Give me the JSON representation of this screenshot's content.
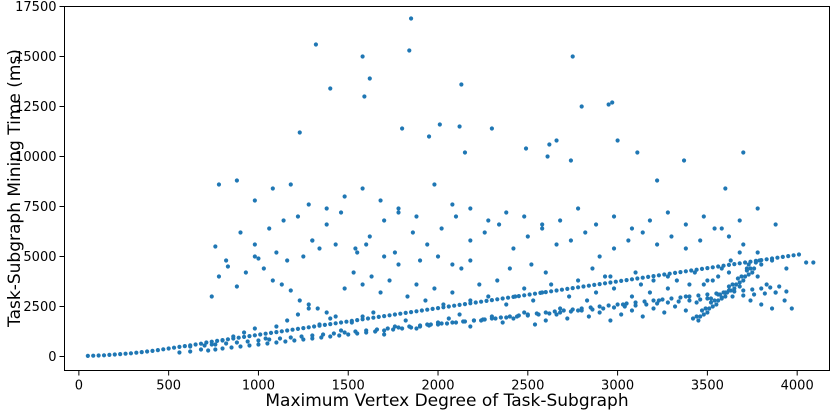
{
  "chart_data": {
    "type": "scatter",
    "title": "",
    "xlabel": "Maximum Vertex Degree of Task-Subgraph",
    "ylabel": "Task-Subgraph Mining Time (ms)",
    "xlim": [
      -80,
      4180
    ],
    "ylim": [
      -700,
      17500
    ],
    "xticks": [
      0,
      500,
      1000,
      1500,
      2000,
      2500,
      3000,
      3500,
      4000
    ],
    "xtick_labels": [
      "0",
      "500",
      "1000",
      "1500",
      "2000",
      "2500",
      "3000",
      "3500",
      "4000"
    ],
    "yticks": [
      0,
      2500,
      5000,
      7500,
      10000,
      12500,
      15000,
      17500
    ],
    "ytick_labels": [
      "0",
      "2500",
      "5000",
      "7500",
      "10000",
      "12500",
      "15000",
      "17500"
    ],
    "grid": false,
    "legend": "none",
    "point_color": "#1f77b4",
    "series": [
      {
        "x": [
          50,
          80,
          110,
          140,
          170,
          200,
          230,
          260,
          290,
          320,
          350,
          380,
          410,
          440,
          470,
          500,
          530,
          560,
          590,
          620,
          650,
          680,
          710,
          740,
          770,
          800,
          830,
          860,
          890,
          920,
          950,
          980,
          1010,
          1040,
          1070,
          1100,
          1130,
          1160,
          1190,
          1220,
          1250,
          1280,
          1310,
          1340,
          1370,
          1400,
          1430,
          1460,
          1490,
          1520,
          1550,
          1580,
          1610,
          1640,
          1670,
          1700,
          1730,
          1760,
          1790,
          1820,
          1850,
          1880,
          1910,
          1940,
          1970,
          2000,
          2030,
          2060,
          2090,
          2120,
          2150,
          2180,
          2210,
          2240,
          2270,
          2300,
          2330,
          2360,
          2390,
          2420,
          2450,
          2480,
          2510,
          2540,
          2570,
          2600,
          2630,
          2660,
          2690,
          2720,
          2750,
          2780,
          2810,
          2840,
          2870,
          2900,
          2930,
          2960,
          2990,
          3020,
          3050,
          3080,
          3110,
          3140,
          3170,
          3200,
          3230,
          3260,
          3290,
          3320,
          3350,
          3380,
          3410,
          3440,
          3470,
          3500,
          3530,
          3560,
          3590,
          3620,
          3650,
          3680,
          3710,
          3740,
          3770,
          3800,
          3830,
          3860,
          3890,
          3920,
          3950,
          3980,
          4010,
          4050,
          4090,
          720,
          760,
          800,
          850,
          900,
          950,
          1000,
          1050,
          1100,
          1150,
          1200,
          1250,
          1300,
          1350,
          1400,
          1450,
          1500,
          1550,
          1600,
          1650,
          1700,
          1750,
          1800,
          1850,
          1900,
          1950,
          2000,
          2050,
          2100,
          2150,
          2200,
          2250,
          2300,
          2350,
          2400,
          2450,
          2500,
          2550,
          2600,
          2650,
          2700,
          2750,
          2800,
          2850,
          2900,
          2950,
          3000,
          3050,
          3100,
          3150,
          3200,
          3250,
          3300,
          3350,
          3400,
          3450,
          3500,
          3550,
          3600,
          3650,
          3700,
          3750,
          3800,
          3850,
          3900,
          560,
          620,
          680,
          740,
          800,
          860,
          920,
          980,
          1040,
          1100,
          1160,
          1220,
          1280,
          1340,
          1400,
          1460,
          1520,
          1580,
          1640,
          1700,
          1760,
          1820,
          1880,
          1940,
          2000,
          2060,
          2120,
          2180,
          2240,
          2300,
          2360,
          2420,
          2480,
          2540,
          2600,
          2660,
          2720,
          2780,
          2840,
          2900,
          2960,
          3020,
          3080,
          3140,
          3200,
          3260,
          3320,
          3380,
          3440,
          3500,
          3560,
          3620,
          3680,
          3740,
          3800,
          3860,
          740,
          780,
          830,
          880,
          930,
          980,
          1030,
          1080,
          1130,
          1180,
          1230,
          1280,
          1330,
          1380,
          1430,
          1480,
          1530,
          1580,
          1630,
          1680,
          1730,
          1780,
          1830,
          1880,
          1930,
          1980,
          2030,
          2080,
          2130,
          2180,
          2230,
          2280,
          2330,
          2380,
          2430,
          2480,
          2530,
          2580,
          2630,
          2680,
          2730,
          2780,
          2830,
          2880,
          2930,
          2980,
          3030,
          3080,
          3130,
          3180,
          3230,
          3280,
          3330,
          3380,
          3430,
          3480,
          3530,
          3580,
          3630,
          3680,
          3730,
          3780,
          3830,
          3880,
          3930,
          3970,
          760,
          820,
          900,
          980,
          1060,
          1140,
          1220,
          1300,
          1380,
          1460,
          1540,
          1620,
          1700,
          1780,
          1860,
          1940,
          2020,
          2100,
          2180,
          2260,
          2340,
          2420,
          2500,
          2580,
          2660,
          2740,
          2820,
          2900,
          2980,
          3060,
          3140,
          3220,
          3300,
          3380,
          3460,
          3540,
          3620,
          3700,
          3780,
          3860,
          3940,
          780,
          880,
          980,
          1080,
          1180,
          1280,
          1380,
          1480,
          1580,
          1680,
          1780,
          1880,
          1980,
          2080,
          2180,
          2280,
          2380,
          2480,
          2580,
          2680,
          2780,
          2880,
          2980,
          3080,
          3180,
          3280,
          3380,
          3480,
          3580,
          3680,
          3780,
          3880,
          1320,
          1850,
          1580,
          1840,
          2130,
          2750,
          2970,
          1400,
          1620,
          1590,
          2800,
          2950,
          3000,
          1230,
          1800,
          1950,
          2010,
          2120,
          2150,
          2300,
          2490,
          2610,
          2620,
          2660,
          2740,
          3110,
          3220,
          3370,
          3600,
          3700,
          1300,
          1000,
          1100,
          1160,
          1250,
          1340,
          1430,
          1550,
          1600,
          1700,
          1760,
          1900,
          2000,
          2080,
          2180,
          2400,
          2520,
          2600,
          2860,
          2960,
          3100,
          3200,
          3280,
          3400,
          3500,
          3560,
          3620,
          3720,
          3800,
          620,
          700,
          760,
          820,
          880,
          940,
          1000,
          1060,
          1120,
          1180,
          1240,
          1300,
          1360,
          1420,
          1480,
          1540,
          1600,
          1660,
          1720,
          1780,
          1840,
          1900,
          1960,
          2020,
          2080,
          2140,
          2200,
          2260,
          2320,
          2380,
          2440,
          2500,
          2560,
          2620,
          2680,
          2740,
          2800,
          2860,
          2920,
          2980,
          3040,
          3100,
          3160,
          3220,
          3280,
          3340,
          3400,
          3460,
          3520,
          3580,
          3640,
          3700,
          3760,
          3820,
          3880,
          3940,
          3450,
          3500,
          3550,
          3600,
          3650,
          3700,
          3750,
          3460,
          3510,
          3560,
          3610,
          3660,
          3710,
          3760,
          3480,
          3530,
          3580,
          3630,
          3680,
          3730,
          3420,
          3470,
          3520,
          3570,
          3620,
          3670,
          3720,
          3770,
          3440,
          3490,
          3540,
          3590,
          3640,
          3690,
          3740,
          3790
        ],
        "y": [
          30,
          40,
          50,
          60,
          80,
          100,
          120,
          140,
          160,
          190,
          220,
          250,
          280,
          320,
          360,
          400,
          440,
          480,
          520,
          560,
          600,
          640,
          700,
          740,
          780,
          820,
          860,
          900,
          940,
          980,
          1020,
          1060,
          1100,
          1140,
          1180,
          1220,
          1260,
          1300,
          1340,
          1380,
          1420,
          1460,
          1500,
          1540,
          1580,
          1620,
          1660,
          1700,
          1740,
          1780,
          1820,
          1860,
          1900,
          1940,
          1980,
          2020,
          2060,
          2100,
          2140,
          2180,
          2220,
          2260,
          2300,
          2340,
          2380,
          2420,
          2460,
          2500,
          2540,
          2580,
          2620,
          2660,
          2700,
          2740,
          2780,
          2820,
          2860,
          2900,
          2940,
          2980,
          3020,
          3060,
          3100,
          3140,
          3180,
          3220,
          3260,
          3300,
          3340,
          3380,
          3420,
          3460,
          3500,
          3540,
          3580,
          3620,
          3660,
          3700,
          3740,
          3780,
          3820,
          3860,
          3900,
          3940,
          3980,
          4020,
          4060,
          4100,
          4140,
          4180,
          4220,
          4260,
          4300,
          4340,
          4380,
          4420,
          4460,
          4500,
          4540,
          4580,
          4620,
          4660,
          4700,
          4740,
          4780,
          4820,
          4860,
          4900,
          4940,
          4980,
          5020,
          5060,
          5100,
          4700,
          4700,
          300,
          350,
          400,
          450,
          500,
          550,
          600,
          650,
          700,
          750,
          800,
          850,
          900,
          950,
          1000,
          1050,
          1100,
          1150,
          1200,
          1250,
          1300,
          1350,
          1400,
          1450,
          1500,
          1550,
          1600,
          1650,
          1700,
          1750,
          1800,
          1850,
          1900,
          1950,
          2000,
          2050,
          2100,
          2150,
          2200,
          2250,
          2300,
          2350,
          2400,
          2450,
          2500,
          2550,
          2600,
          2650,
          2700,
          2750,
          2800,
          2850,
          2900,
          2950,
          3000,
          3050,
          3100,
          3150,
          3200,
          3250,
          3300,
          3350,
          3400,
          3450,
          3500,
          200,
          250,
          350,
          600,
          800,
          1000,
          1200,
          1400,
          900,
          1500,
          1800,
          2100,
          2400,
          1600,
          1900,
          1300,
          1700,
          2000,
          2200,
          1100,
          1500,
          1800,
          1400,
          1600,
          1700,
          1900,
          2100,
          1500,
          1800,
          2000,
          1700,
          1900,
          2200,
          1600,
          1800,
          2100,
          1900,
          2300,
          2000,
          2200,
          1800,
          2100,
          2300,
          2000,
          2400,
          2200,
          2500,
          2300,
          2700,
          2900,
          3100,
          3300,
          3500,
          2800,
          2600,
          2400,
          3000,
          4000,
          4500,
          3500,
          4200,
          5000,
          4400,
          3800,
          3600,
          3300,
          2800,
          2600,
          2400,
          2200,
          2000,
          3400,
          4200,
          3600,
          4000,
          3200,
          3800,
          4600,
          3000,
          3600,
          2800,
          3400,
          2600,
          3200,
          4400,
          2800,
          3600,
          3000,
          3800,
          2600,
          3000,
          3400,
          2800,
          3200,
          3600,
          2400,
          3000,
          3800,
          2800,
          3200,
          4000,
          3400,
          2600,
          3000,
          3600,
          3200,
          2800,
          3400,
          3800,
          3000,
          4200,
          3600,
          3800,
          4400,
          4800,
          5200,
          4600,
          4000,
          3600,
          3200,
          2800,
          2400,
          5500,
          4800,
          6200,
          5600,
          6400,
          6800,
          7000,
          5800,
          6600,
          7200,
          5400,
          6000,
          6800,
          7400,
          6200,
          5600,
          6400,
          7000,
          5800,
          6200,
          6600,
          5400,
          6000,
          6400,
          5600,
          5800,
          6200,
          5000,
          5400,
          5800,
          6200,
          5600,
          6000,
          5400,
          5800,
          6400,
          6000,
          5600,
          5200,
          4800,
          4400,
          8600,
          8800,
          7800,
          8400,
          8600,
          7600,
          7400,
          8000,
          8400,
          7800,
          7200,
          7000,
          8600,
          7600,
          7400,
          6800,
          7200,
          7000,
          6600,
          6800,
          7400,
          6600,
          7000,
          6400,
          6800,
          7200,
          6600,
          7000,
          6400,
          6800,
          7400,
          6600,
          15600,
          16900,
          15000,
          15300,
          13600,
          15000,
          12700,
          13400,
          13900,
          13000,
          12500,
          12600,
          10800,
          11200,
          11400,
          11000,
          11600,
          11500,
          10200,
          11400,
          10400,
          10000,
          10600,
          10800,
          9800,
          10200,
          8800,
          9800,
          8400,
          10200,
          5800,
          4900,
          5200,
          4800,
          5000,
          5400,
          5600,
          5200,
          5600,
          5000,
          5200,
          4800,
          5000,
          4600,
          4800,
          4400,
          4600,
          4200,
          4400,
          4000,
          4200,
          3800,
          4000,
          3600,
          3800,
          4000,
          4200,
          4400,
          4600,
          500,
          550,
          600,
          650,
          700,
          750,
          800,
          850,
          900,
          950,
          1000,
          1050,
          1100,
          1150,
          1200,
          1250,
          1300,
          1350,
          1400,
          1450,
          1500,
          1550,
          1600,
          1650,
          1700,
          1750,
          1800,
          1850,
          1900,
          1950,
          2000,
          2050,
          2100,
          2150,
          2200,
          2250,
          2300,
          2350,
          2400,
          2450,
          2500,
          2550,
          2600,
          2650,
          2700,
          2750,
          2800,
          2850,
          2900,
          2950,
          3000,
          3050,
          3100,
          3150,
          3200,
          3250,
          1800,
          2200,
          2600,
          3000,
          3400,
          3800,
          4200,
          2000,
          2400,
          2800,
          3200,
          3600,
          4000,
          4400,
          2100,
          2500,
          2900,
          3300,
          3700,
          4100,
          1900,
          2300,
          2700,
          3100,
          3500,
          3900,
          4300,
          4700,
          2000,
          2400,
          2800,
          3200,
          3600,
          4000,
          4400,
          4800
        ]
      }
    ]
  }
}
